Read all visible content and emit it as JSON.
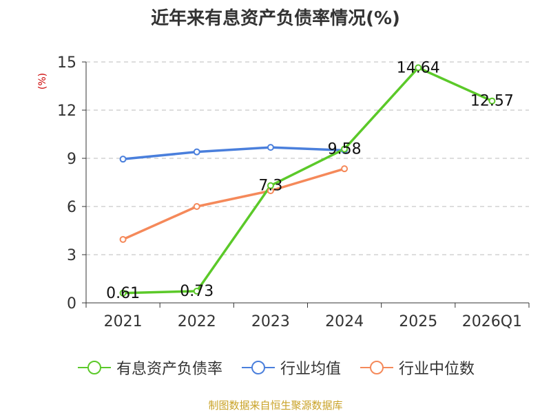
{
  "chart_data": {
    "type": "line",
    "title": "近年来有息资产负债率情况(%)",
    "ylabel": "(%)",
    "categories": [
      "2021",
      "2022",
      "2023",
      "2024",
      "2025",
      "2026Q1"
    ],
    "yticks": [
      "0",
      "3",
      "6",
      "9",
      "12",
      "15"
    ],
    "ylim": [
      0,
      15
    ],
    "series": [
      {
        "name": "有息资产负债率",
        "color": "#5bc929",
        "values": [
          0.61,
          0.73,
          7.3,
          9.58,
          14.64,
          12.57
        ],
        "labels": [
          "0.61",
          "0.73",
          "7.3",
          "9.58",
          "14.64",
          "12.57"
        ]
      },
      {
        "name": "行业均值",
        "color": "#4a7fdc",
        "values": [
          8.95,
          9.4,
          9.68,
          9.5,
          null,
          null
        ]
      },
      {
        "name": "行业中位数",
        "color": "#f5895a",
        "values": [
          3.95,
          6.0,
          6.98,
          8.35,
          null,
          null
        ]
      }
    ],
    "grid": true,
    "legend_position": "bottom"
  },
  "source": "制图数据来自恒生聚源数据库"
}
